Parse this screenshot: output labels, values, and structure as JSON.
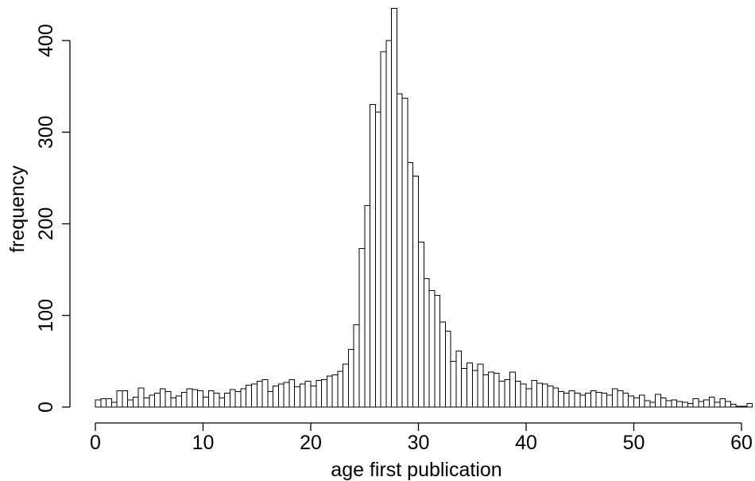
{
  "chart_data": {
    "type": "bar",
    "title": "",
    "xlabel": "age first publication",
    "ylabel": "frequency",
    "bin_width": 0.5,
    "bin_start": 0,
    "xlim": [
      0,
      63
    ],
    "ylim": [
      0,
      435
    ],
    "x_ticks": [
      0,
      10,
      20,
      30,
      40,
      50,
      60
    ],
    "y_ticks": [
      0,
      100,
      200,
      300,
      400
    ],
    "grid": false,
    "legend": "none",
    "values": [
      8,
      9,
      9,
      5,
      18,
      18,
      8,
      11,
      21,
      10,
      13,
      15,
      20,
      17,
      10,
      12,
      16,
      20,
      19,
      18,
      11,
      18,
      15,
      10,
      15,
      19,
      17,
      20,
      24,
      25,
      28,
      30,
      17,
      23,
      25,
      27,
      30,
      22,
      25,
      28,
      23,
      29,
      30,
      34,
      35,
      39,
      47,
      63,
      90,
      173,
      220,
      330,
      322,
      388,
      400,
      435,
      342,
      337,
      267,
      252,
      180,
      140,
      127,
      122,
      93,
      83,
      50,
      61,
      42,
      48,
      40,
      47,
      35,
      38,
      37,
      28,
      30,
      38,
      28,
      25,
      20,
      29,
      26,
      25,
      23,
      21,
      17,
      15,
      18,
      15,
      13,
      15,
      18,
      16,
      15,
      13,
      20,
      18,
      15,
      12,
      10,
      13,
      7,
      5,
      14,
      10,
      7,
      8,
      6,
      5,
      4,
      9,
      6,
      8,
      11,
      5,
      9,
      6,
      3,
      1,
      1,
      4,
      0,
      1,
      0,
      2,
      0,
      1,
      0,
      0,
      0,
      0,
      0,
      0,
      0,
      1
    ]
  }
}
